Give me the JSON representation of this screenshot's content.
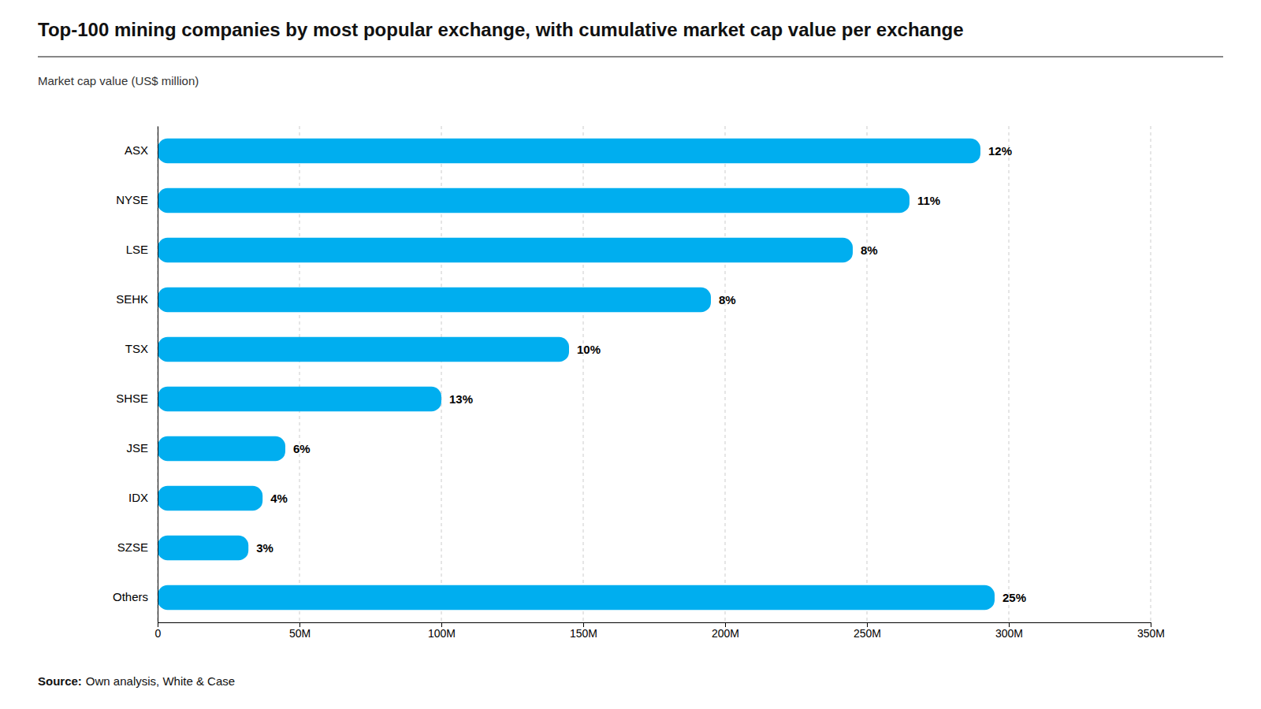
{
  "chart_data": {
    "type": "bar",
    "orientation": "horizontal",
    "title": "Top-100 mining companies by most popular exchange, with cumulative market cap value per exchange",
    "subtitle": "Market cap value (US$ million)",
    "annotations": [
      "Source:",
      "Own analysis, White & Case"
    ],
    "categories": [
      "ASX",
      "NYSE",
      "LSE",
      "SEHK",
      "TSX",
      "SHSE",
      "JSE",
      "IDX",
      "SZSE",
      "Others"
    ],
    "values": [
      290,
      265,
      245,
      195,
      145,
      100,
      45,
      37,
      32,
      295
    ],
    "percentages": [
      "12%",
      "11%",
      "8%",
      "8%",
      "10%",
      "13%",
      "6%",
      "4%",
      "3%",
      "25%"
    ],
    "color": "#00AEEF",
    "xlim": [
      0,
      350
    ],
    "xticks": [
      0,
      {
        "value": 50,
        "label": "50M"
      },
      {
        "value": 100,
        "label": "100M"
      },
      {
        "value": 150,
        "label": "150M"
      },
      {
        "value": 200,
        "label": "200M"
      },
      {
        "value": 250,
        "label": "250M"
      },
      {
        "value": 300,
        "label": "300M"
      },
      {
        "value": 350,
        "label": "350M"
      }
    ],
    "grid": true
  }
}
